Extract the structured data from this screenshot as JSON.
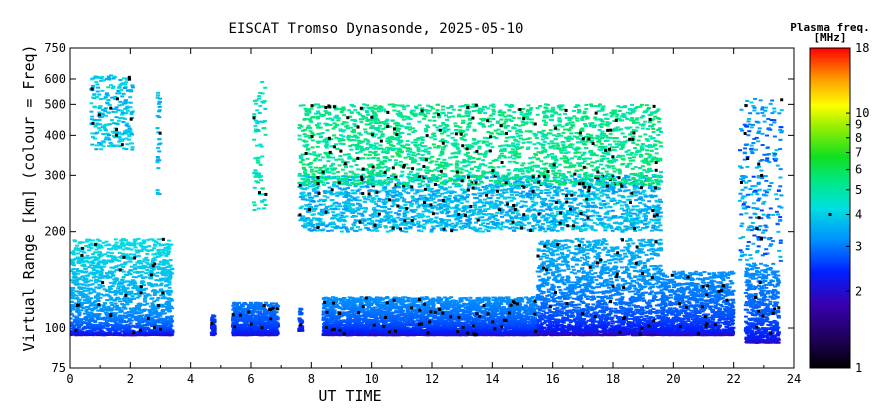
{
  "chart_data": {
    "type": "heatmap",
    "title": "EISCAT Tromso Dynasonde, 2025-05-10",
    "xlabel": "UT TIME",
    "ylabel": "Virtual Range [km] (colour = Freq)",
    "xlim": [
      0,
      24
    ],
    "ylim": [
      75,
      750
    ],
    "yscale": "log",
    "x_ticks": [
      "0",
      "2",
      "4",
      "6",
      "8",
      "10",
      "12",
      "14",
      "16",
      "18",
      "20",
      "22",
      "24"
    ],
    "y_ticks": [
      {
        "value": 750,
        "label": "750"
      },
      {
        "value": 600,
        "label": "600"
      },
      {
        "value": 500,
        "label": "500"
      },
      {
        "value": 400,
        "label": "400"
      },
      {
        "value": 300,
        "label": "300"
      },
      {
        "value": 200,
        "label": "200"
      },
      {
        "value": 100,
        "label": "100"
      },
      {
        "value": 75,
        "label": "75"
      }
    ],
    "colorbar": {
      "title": "Plasma freq.",
      "units": "[MHz]",
      "range": [
        1,
        18
      ],
      "scale": "log",
      "ticks": [
        {
          "value": 18,
          "label": "18"
        },
        {
          "value": 10,
          "label": "10"
        },
        {
          "value": 9,
          "label": "9"
        },
        {
          "value": 8,
          "label": "8"
        },
        {
          "value": 7,
          "label": "7"
        },
        {
          "value": 6,
          "label": "6"
        },
        {
          "value": 5,
          "label": "5"
        },
        {
          "value": 4,
          "label": "4"
        },
        {
          "value": 3,
          "label": "3"
        },
        {
          "value": 2,
          "label": "2"
        },
        {
          "value": 1,
          "label": "1"
        }
      ]
    },
    "traces": [
      {
        "layer": "E",
        "t_start": 0.0,
        "t_end": 3.4,
        "h_min": 95,
        "h_max": 190,
        "f_min": 1.8,
        "f_max": 4.2
      },
      {
        "layer": "E",
        "t_start": 4.7,
        "t_end": 4.8,
        "h_min": 95,
        "h_max": 110,
        "f_min": 2.0,
        "f_max": 2.6
      },
      {
        "layer": "E",
        "t_start": 5.4,
        "t_end": 6.9,
        "h_min": 95,
        "h_max": 120,
        "f_min": 1.9,
        "f_max": 3.0
      },
      {
        "layer": "E",
        "t_start": 7.6,
        "t_end": 7.7,
        "h_min": 98,
        "h_max": 115,
        "f_min": 2.0,
        "f_max": 2.8
      },
      {
        "layer": "E",
        "t_start": 8.4,
        "t_end": 15.5,
        "h_min": 95,
        "h_max": 125,
        "f_min": 1.8,
        "f_max": 3.2
      },
      {
        "layer": "E",
        "t_start": 15.5,
        "t_end": 19.6,
        "h_min": 95,
        "h_max": 190,
        "f_min": 1.6,
        "f_max": 3.6
      },
      {
        "layer": "E",
        "t_start": 19.6,
        "t_end": 22.0,
        "h_min": 95,
        "h_max": 150,
        "f_min": 1.8,
        "f_max": 3.2
      },
      {
        "layer": "E",
        "t_start": 22.4,
        "t_end": 23.5,
        "h_min": 90,
        "h_max": 160,
        "f_min": 1.8,
        "f_max": 3.2
      },
      {
        "layer": "F",
        "t_start": 0.7,
        "t_end": 2.1,
        "h_min": 360,
        "h_max": 620,
        "f_min": 3.3,
        "f_max": 4.5
      },
      {
        "layer": "F",
        "t_start": 2.9,
        "t_end": 3.0,
        "h_min": 260,
        "h_max": 560,
        "f_min": 3.3,
        "f_max": 4.0
      },
      {
        "layer": "F",
        "t_start": 6.1,
        "t_end": 6.5,
        "h_min": 230,
        "h_max": 600,
        "f_min": 3.8,
        "f_max": 5.5
      },
      {
        "layer": "F",
        "t_start": 7.6,
        "t_end": 19.6,
        "h_min": 200,
        "h_max": 300,
        "f_min": 3.2,
        "f_max": 4.2
      },
      {
        "layer": "F",
        "t_start": 7.6,
        "t_end": 19.6,
        "h_min": 280,
        "h_max": 500,
        "f_min": 4.5,
        "f_max": 6.0
      },
      {
        "layer": "F",
        "t_start": 22.2,
        "t_end": 23.6,
        "h_min": 160,
        "h_max": 520,
        "f_min": 2.5,
        "f_max": 4.0
      }
    ]
  }
}
